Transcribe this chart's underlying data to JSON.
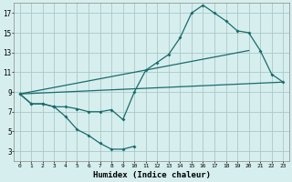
{
  "xlabel": "Humidex (Indice chaleur)",
  "bg_color": "#d6eeee",
  "grid_color": "#aac8c8",
  "line_color": "#1a6b6b",
  "xlim": [
    -0.5,
    23.5
  ],
  "ylim": [
    2,
    18
  ],
  "xticks": [
    0,
    1,
    2,
    3,
    4,
    5,
    6,
    7,
    8,
    9,
    10,
    11,
    12,
    13,
    14,
    15,
    16,
    17,
    18,
    19,
    20,
    21,
    22,
    23
  ],
  "yticks": [
    3,
    5,
    7,
    9,
    11,
    13,
    15,
    17
  ],
  "curve_main": {
    "x": [
      0,
      1,
      2,
      3,
      3,
      4,
      5,
      6,
      7,
      8,
      9,
      10,
      11,
      12,
      13,
      14,
      15,
      16,
      17,
      18,
      19,
      20,
      21,
      22,
      23
    ],
    "y": [
      8.8,
      7.8,
      7.8,
      7.5,
      7.5,
      7.5,
      7.3,
      7.0,
      7.0,
      7.2,
      6.2,
      9.0,
      11.2,
      12.0,
      12.8,
      14.5,
      17.0,
      17.8,
      17.0,
      16.2,
      15.2,
      15.0,
      13.2,
      10.8,
      10.0
    ]
  },
  "curve_low": {
    "x": [
      0,
      1,
      2,
      3,
      4,
      5,
      6,
      7,
      8,
      9,
      10
    ],
    "y": [
      8.8,
      7.8,
      7.8,
      7.5,
      6.5,
      5.2,
      4.6,
      3.8,
      3.2,
      3.2,
      3.5
    ]
  },
  "line_lower_diag": {
    "x": [
      0,
      23
    ],
    "y": [
      8.8,
      10.0
    ]
  },
  "line_upper_diag": {
    "x": [
      0,
      20
    ],
    "y": [
      8.8,
      13.2
    ]
  }
}
